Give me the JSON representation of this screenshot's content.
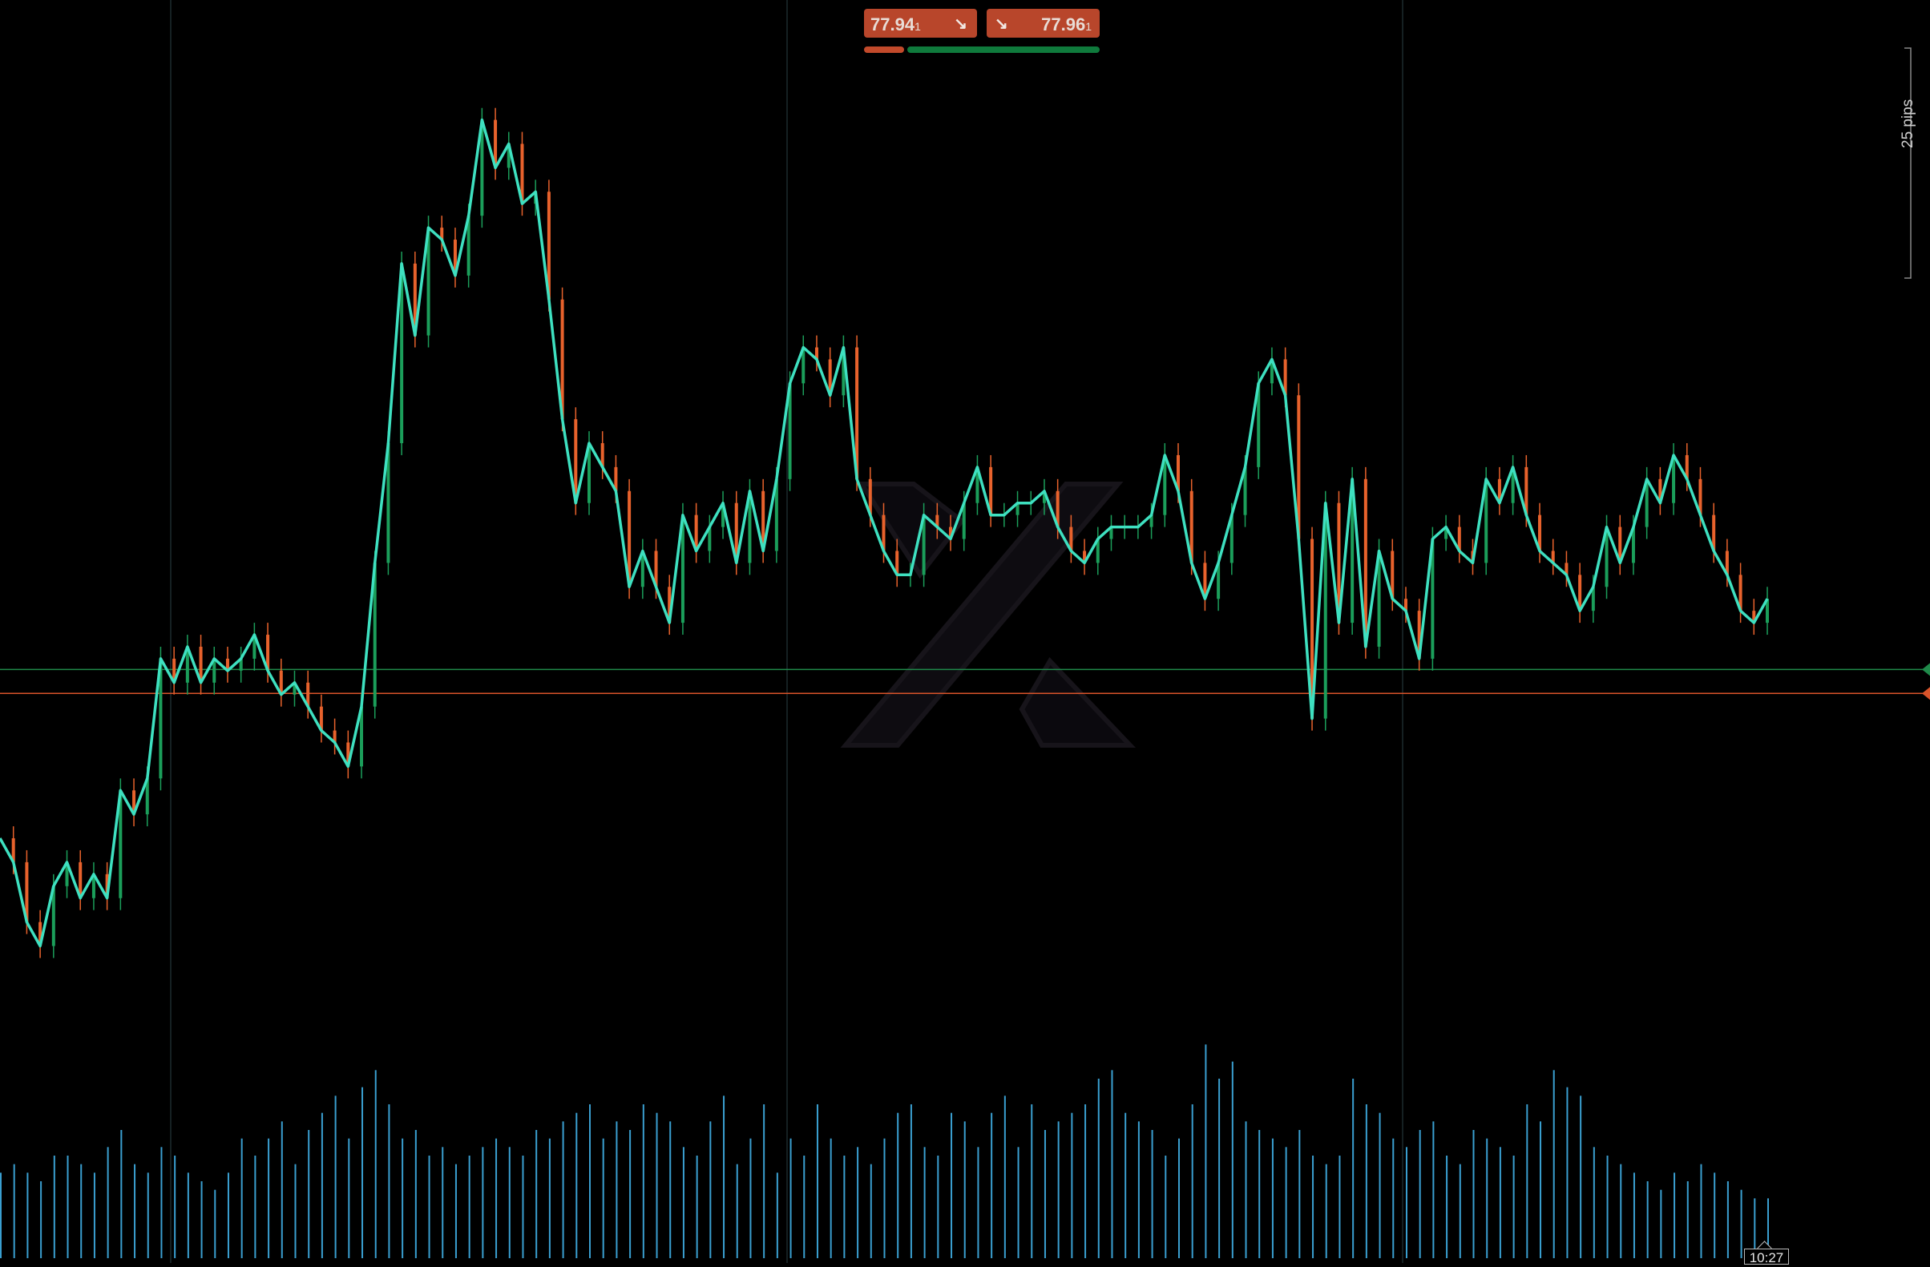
{
  "header": {
    "sell_price": "77.94",
    "sell_price_frac": "1",
    "buy_price": "77.96",
    "buy_price_frac": "1",
    "sell_arrow": "↘",
    "buy_arrow": "↘",
    "sell_sentiment": 0.17,
    "buy_sentiment": 0.83
  },
  "scale_label": "25 pips",
  "time_label": "10:27",
  "colors": {
    "background": "#000000",
    "line": "#3ee0c0",
    "candle_up": "#1b9e5a",
    "candle_down": "#e8622c",
    "volume": "#3a9fd0",
    "bid_line": "#1f8a4a",
    "ask_line": "#d8532a",
    "sell": "#b8462b",
    "buy_bar": "#0f7a3c"
  },
  "icons": {
    "sell_arrow_icon": "arrow-down-right-icon",
    "buy_arrow_icon": "arrow-down-right-icon",
    "watermark": "x-logo-watermark"
  },
  "chart_data": {
    "type": "line",
    "grid": false,
    "bid_level": 77.941,
    "ask_level": 77.961,
    "ylim": [
      77.65,
      78.48
    ],
    "series": [
      {
        "values": [
          77.82,
          77.8,
          77.75,
          77.73,
          77.78,
          77.8,
          77.77,
          77.79,
          77.77,
          77.86,
          77.84,
          77.87,
          77.97,
          77.95,
          77.98,
          77.95,
          77.97,
          77.96,
          77.97,
          77.99,
          77.96,
          77.94,
          77.95,
          77.93,
          77.91,
          77.9,
          77.88,
          77.93,
          78.05,
          78.15,
          78.3,
          78.24,
          78.33,
          78.32,
          78.29,
          78.34,
          78.42,
          78.38,
          78.4,
          78.35,
          78.36,
          78.27,
          78.17,
          78.1,
          78.15,
          78.13,
          78.11,
          78.03,
          78.06,
          78.03,
          78.0,
          78.09,
          78.06,
          78.08,
          78.1,
          78.05,
          78.11,
          78.06,
          78.12,
          78.2,
          78.23,
          78.22,
          78.19,
          78.23,
          78.12,
          78.09,
          78.06,
          78.04,
          78.04,
          78.09,
          78.08,
          78.07,
          78.1,
          78.13,
          78.09,
          78.09,
          78.1,
          78.1,
          78.11,
          78.08,
          78.06,
          78.05,
          78.07,
          78.08,
          78.08,
          78.08,
          78.09,
          78.14,
          78.11,
          78.05,
          78.02,
          78.05,
          78.09,
          78.13,
          78.2,
          78.22,
          78.19,
          78.07,
          77.92,
          78.1,
          78.0,
          78.12,
          77.98,
          78.06,
          78.02,
          78.01,
          77.97,
          78.07,
          78.08,
          78.06,
          78.05,
          78.12,
          78.1,
          78.13,
          78.09,
          78.06,
          78.05,
          78.04,
          78.01,
          78.03,
          78.08,
          78.05,
          78.08,
          78.12,
          78.1,
          78.14,
          78.12,
          78.09,
          78.06,
          78.04,
          78.01,
          78.0,
          78.02
        ],
        "note_x": "each value is one minute; x axis is time ending at 10:27"
      }
    ],
    "volume": [
      10,
      11,
      10,
      9,
      12,
      12,
      11,
      10,
      13,
      15,
      11,
      10,
      13,
      12,
      10,
      9,
      8,
      10,
      14,
      12,
      14,
      16,
      11,
      15,
      17,
      19,
      14,
      20,
      22,
      18,
      14,
      15,
      12,
      13,
      11,
      12,
      13,
      14,
      13,
      12,
      15,
      14,
      16,
      17,
      18,
      14,
      16,
      15,
      18,
      17,
      16,
      13,
      12,
      16,
      19,
      11,
      14,
      18,
      10,
      14,
      12,
      18,
      14,
      12,
      13,
      11,
      14,
      17,
      18,
      13,
      12,
      17,
      16,
      13,
      17,
      19,
      13,
      18,
      15,
      16,
      17,
      18,
      21,
      22,
      17,
      16,
      15,
      12,
      14,
      18,
      25,
      21,
      23,
      16,
      15,
      14,
      13,
      15,
      12,
      11,
      12,
      21,
      18,
      17,
      14,
      13,
      15,
      16,
      12,
      11,
      15,
      14,
      13,
      12,
      18,
      16,
      22,
      20,
      19,
      13,
      12,
      11,
      10,
      9,
      8,
      10,
      9,
      11,
      10,
      9,
      8,
      7,
      7
    ]
  }
}
